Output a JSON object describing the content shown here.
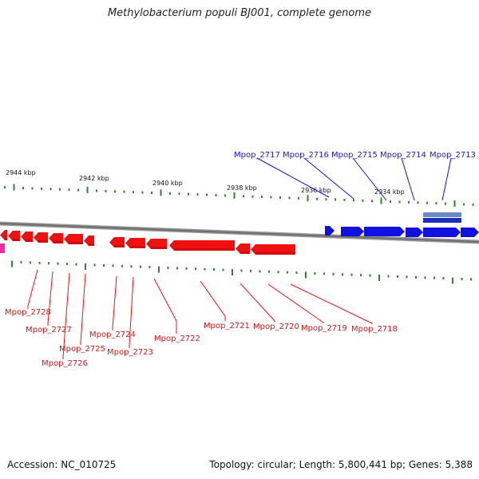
{
  "title": "Methylobacterium populi BJ001, complete genome",
  "footer": {
    "accession": "Accession: NC_010725",
    "summary": "Topology: circular; Length: 5,800,441 bp; Genes: 5,388"
  },
  "kbp_labels": [
    {
      "label": "2944 kbp"
    },
    {
      "label": "2942 kbp"
    },
    {
      "label": "2940 kbp"
    },
    {
      "label": "2938 kbp"
    },
    {
      "label": "2936 kbp"
    },
    {
      "label": "2934 kbp"
    }
  ],
  "colors": {
    "forward_gene": "#1010e0",
    "reverse_gene": "#f01010",
    "other_feature": "#ff2aa0",
    "backbone": "#808080",
    "tick": "#2a8a2a",
    "label_blue": "#1a1acc",
    "label_red": "#cc1a1a"
  },
  "genes_forward": [
    "Mpop_2717",
    "Mpop_2716",
    "Mpop_2715",
    "Mpop_2714",
    "Mpop_2713"
  ],
  "genes_reverse": [
    "Mpop_2728",
    "Mpop_2727",
    "Mpop_2726",
    "Mpop_2725",
    "Mpop_2724",
    "Mpop_2723",
    "Mpop_2722",
    "Mpop_2721",
    "Mpop_2720",
    "Mpop_2719",
    "Mpop_2718"
  ]
}
